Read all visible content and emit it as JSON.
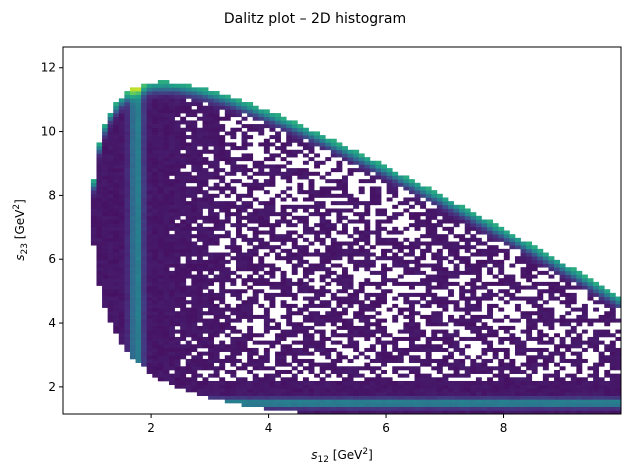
{
  "chart_data": {
    "type": "heatmap",
    "title": "Dalitz plot – 2D histogram",
    "xlabel": {
      "base": "s",
      "sub": "12",
      "unit_open": " [GeV",
      "unit_sup": "2",
      "unit_close": "]"
    },
    "ylabel": {
      "base": "s",
      "sub": "23",
      "unit_open": " [GeV",
      "unit_sup": "2",
      "unit_close": "]"
    },
    "xlim": [
      0.5,
      10.0
    ],
    "ylim": [
      1.15,
      12.65
    ],
    "xticks": [
      2,
      4,
      6,
      8
    ],
    "yticks": [
      2,
      4,
      6,
      8,
      10,
      12
    ],
    "colormap": "viridis",
    "grid": false,
    "bins": {
      "nx": 100,
      "ny": 100
    },
    "resonance_bands": [
      {
        "axis": "s12",
        "center": 1.75
      },
      {
        "axis": "s23",
        "center": 1.45
      },
      {
        "axis": "s13",
        "along_upper_edge": true
      }
    ],
    "peak": {
      "s12": 1.75,
      "s23": 1.5
    },
    "colors": {
      "empty_bin": "#ffffff",
      "frame": "#000000"
    }
  }
}
